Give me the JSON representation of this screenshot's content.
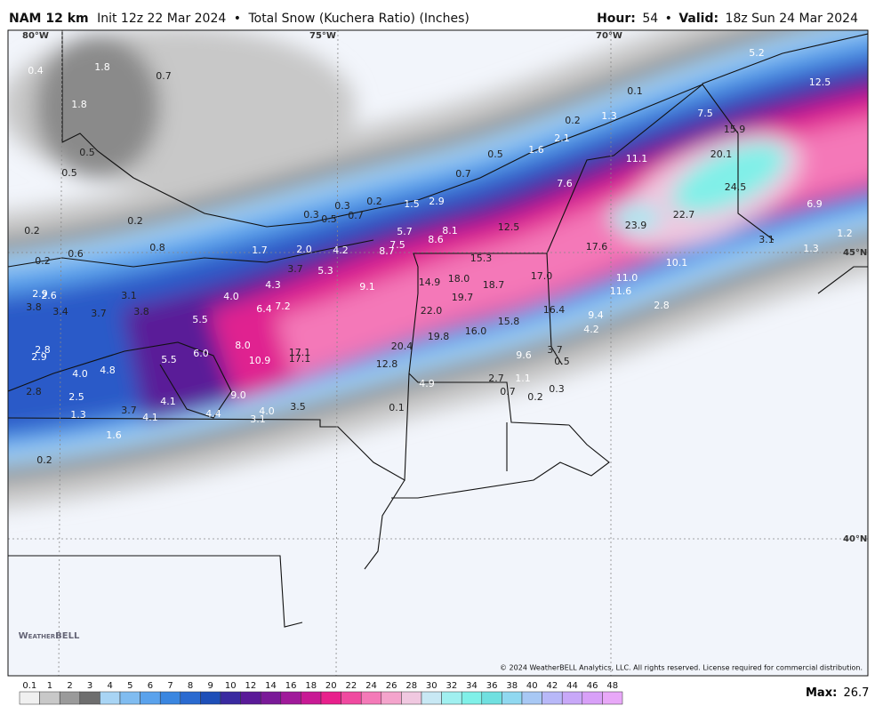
{
  "header": {
    "model": "NAM 12 km",
    "init": "Init 12z 22 Mar 2024",
    "separator": "•",
    "product": "Total Snow (Kuchera Ratio) (Inches)",
    "hour_label": "Hour:",
    "hour": "54",
    "separator2": "•",
    "valid_label": "Valid:",
    "valid": "18z Sun 24 Mar 2024"
  },
  "map": {
    "lon_labels": [
      "80°W",
      "75°W",
      "70°W"
    ],
    "lat_labels": [
      "45°N",
      "40°N"
    ],
    "point_labels": [
      "0.4",
      "1.8",
      "0.7",
      "1.8",
      "0.5",
      "0.5",
      "0.2",
      "0.2",
      "0.6",
      "0.8",
      "0.2",
      "0.3",
      "0.2",
      "0.3",
      "0.5",
      "0.7",
      "1.5",
      "2.9",
      "0.7",
      "0.5",
      "1.6",
      "2.1",
      "0.2",
      "1.3",
      "0.1",
      "5.2",
      "12.5",
      "7.5",
      "15.9",
      "20.1",
      "11.1",
      "7.6",
      "24.5",
      "22.7",
      "23.9",
      "6.9",
      "3.1",
      "1.2",
      "1.3",
      "17.6",
      "10.1",
      "17.0",
      "11.0",
      "11.6",
      "16.4",
      "9.4",
      "4.2",
      "2.8",
      "12.5",
      "8.1",
      "8.6",
      "5.7",
      "7.5",
      "8.7",
      "15.3",
      "18.0",
      "14.9",
      "18.7",
      "19.7",
      "22.0",
      "19.8",
      "16.0",
      "15.8",
      "20.4",
      "9.6",
      "3.7",
      "0.5",
      "12.8",
      "2.7",
      "1.1",
      "4.9",
      "0.7",
      "0.2",
      "0.3",
      "0.1",
      "1.7",
      "2.0",
      "4.2",
      "3.7",
      "5.3",
      "4.3",
      "9.1",
      "4.0",
      "6.4",
      "7.2",
      "5.5",
      "2.9",
      "2.6",
      "3.8",
      "3.4",
      "3.7",
      "3.1",
      "3.8",
      "8.0",
      "6.0",
      "5.5",
      "10.9",
      "17.1",
      "17.1",
      "2.8",
      "2.9",
      "4.0",
      "4.8",
      "2.8",
      "2.5",
      "9.0",
      "4.1",
      "3.7",
      "4.1",
      "4.4",
      "4.0",
      "3.1",
      "3.5",
      "1.3",
      "1.6",
      "0.2"
    ],
    "logo": "WeatherBELL",
    "copyright": "© 2024 WeatherBELL Analytics, LLC. All rights reserved. License required for commercial distribution."
  },
  "legend": {
    "ticks": [
      "0.1",
      "1",
      "2",
      "3",
      "4",
      "5",
      "6",
      "7",
      "8",
      "9",
      "10",
      "12",
      "14",
      "16",
      "18",
      "20",
      "22",
      "24",
      "26",
      "28",
      "30",
      "32",
      "34",
      "36",
      "38",
      "40",
      "42",
      "44",
      "46",
      "48"
    ],
    "colors": [
      "#f0f0f0",
      "#c8c8c8",
      "#9a9a9a",
      "#6e6e6e",
      "#a8d4f4",
      "#80bcf0",
      "#5aa2ec",
      "#3a86e0",
      "#2a6ad0",
      "#1e4fb8",
      "#3a2aa0",
      "#5a1a98",
      "#7a1a98",
      "#a01a9a",
      "#c81a94",
      "#e8208c",
      "#f04aa0",
      "#f47ab8",
      "#f4a4cc",
      "#f0c8e0",
      "#c8e8f4",
      "#a0f0f0",
      "#80f0e8",
      "#70e0e0",
      "#90d8f0",
      "#a8c8f4",
      "#b8b8f8",
      "#c8a8f8",
      "#d8a0f8",
      "#e8a8f8"
    ],
    "max_label": "Max:",
    "max": "26.7"
  }
}
